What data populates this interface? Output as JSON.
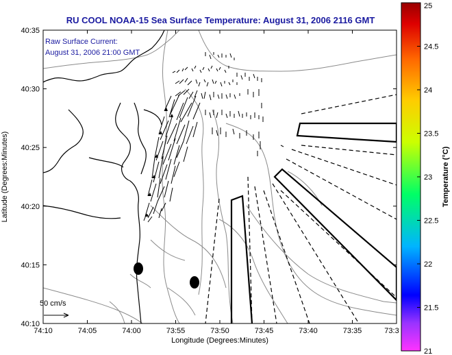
{
  "title": "RU COOL  NOAA-15  Sea Surface Temperature:  August 31, 2006 2116 GMT",
  "annotation": {
    "line1": "Raw Surface Current:",
    "line2": "August 31, 2006 21:00 GMT"
  },
  "scale_label": "50 cm/s",
  "axes": {
    "xlabel": "Longitude (Degrees:Minutes)",
    "ylabel": "Latitude (Degrees:Minutes)",
    "x_ticks": [
      "74:10",
      "74:05",
      "74:00",
      "73:55",
      "73:50",
      "73:45",
      "73:40",
      "73:35",
      "73:3"
    ],
    "y_ticks": [
      "40:35",
      "40:30",
      "40:25",
      "40:20",
      "40:15",
      "40:10"
    ]
  },
  "colorbar": {
    "label": "Temperature (°C)",
    "ticks": [
      "25",
      "24.5",
      "24",
      "23.5",
      "23",
      "22.5",
      "22",
      "21.5",
      "21"
    ],
    "range": [
      21,
      25
    ],
    "colors": [
      "#ff33cc",
      "#9933ff",
      "#0000ff",
      "#00ccff",
      "#00ff66",
      "#ccff00",
      "#ffcc00",
      "#ff6600",
      "#cc0000",
      "#990000"
    ]
  }
}
